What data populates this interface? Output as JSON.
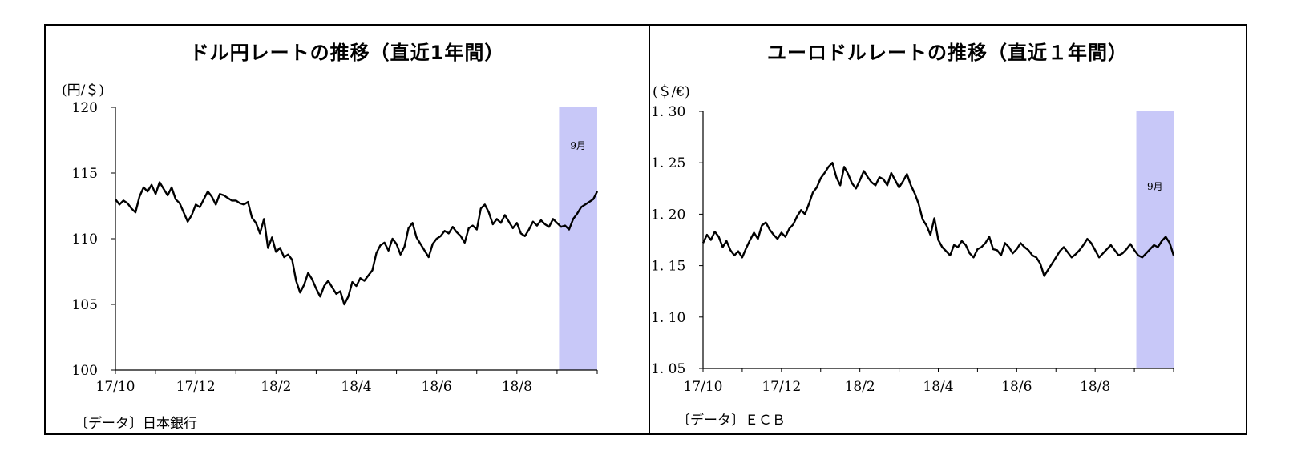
{
  "chart_data": [
    {
      "type": "line",
      "title": "ドル円レートの推移（直近1年間）",
      "unit_label": "(円/＄)",
      "ylim": [
        100,
        120
      ],
      "y_ticks": [
        "100",
        "105",
        "110",
        "115",
        "120"
      ],
      "x_tick_labels": [
        "17/10",
        "17/12",
        "18/2",
        "18/4",
        "18/6",
        "18/8"
      ],
      "x_range_months": [
        0,
        12
      ],
      "highlight": {
        "label": "9月",
        "from": 11.05,
        "to": 12.0,
        "color": "#c8c8f8"
      },
      "series": [
        {
          "name": "ドル円",
          "x": [
            0.0,
            0.1,
            0.2,
            0.3,
            0.4,
            0.5,
            0.6,
            0.7,
            0.8,
            0.9,
            1.0,
            1.1,
            1.2,
            1.3,
            1.4,
            1.5,
            1.6,
            1.7,
            1.8,
            1.9,
            2.0,
            2.1,
            2.2,
            2.3,
            2.4,
            2.5,
            2.6,
            2.7,
            2.8,
            2.9,
            3.0,
            3.1,
            3.2,
            3.3,
            3.4,
            3.5,
            3.6,
            3.7,
            3.8,
            3.9,
            4.0,
            4.1,
            4.2,
            4.3,
            4.4,
            4.5,
            4.6,
            4.7,
            4.8,
            4.9,
            5.0,
            5.1,
            5.2,
            5.3,
            5.4,
            5.5,
            5.6,
            5.7,
            5.8,
            5.9,
            6.0,
            6.1,
            6.2,
            6.3,
            6.4,
            6.5,
            6.6,
            6.7,
            6.8,
            6.9,
            7.0,
            7.1,
            7.2,
            7.3,
            7.4,
            7.5,
            7.6,
            7.7,
            7.8,
            7.9,
            8.0,
            8.1,
            8.2,
            8.3,
            8.4,
            8.5,
            8.6,
            8.7,
            8.8,
            8.9,
            9.0,
            9.1,
            9.2,
            9.3,
            9.4,
            9.5,
            9.6,
            9.7,
            9.8,
            9.9,
            10.0,
            10.1,
            10.2,
            10.3,
            10.4,
            10.5,
            10.6,
            10.7,
            10.8,
            10.9,
            11.0,
            11.1,
            11.2,
            11.3,
            11.4,
            11.5,
            11.6,
            11.7,
            11.8,
            11.9,
            12.0
          ],
          "values": [
            113.0,
            112.6,
            112.9,
            112.7,
            112.3,
            112.0,
            113.2,
            113.9,
            113.6,
            114.1,
            113.4,
            114.3,
            113.8,
            113.3,
            113.9,
            113.0,
            112.7,
            112.0,
            111.3,
            111.8,
            112.6,
            112.4,
            113.0,
            113.6,
            113.2,
            112.6,
            113.4,
            113.3,
            113.1,
            112.9,
            112.9,
            112.7,
            112.6,
            112.8,
            111.6,
            111.2,
            110.4,
            111.5,
            109.3,
            110.1,
            109.0,
            109.3,
            108.6,
            108.8,
            108.4,
            106.8,
            105.9,
            106.5,
            107.4,
            106.9,
            106.2,
            105.6,
            106.4,
            106.8,
            106.3,
            105.8,
            106.0,
            105.0,
            105.6,
            106.7,
            106.4,
            107.0,
            106.8,
            107.2,
            107.6,
            108.9,
            109.5,
            109.7,
            109.1,
            110.0,
            109.6,
            108.8,
            109.4,
            110.8,
            111.2,
            110.1,
            109.6,
            109.1,
            108.6,
            109.6,
            110.0,
            110.2,
            110.6,
            110.4,
            110.9,
            110.5,
            110.2,
            109.7,
            110.8,
            111.0,
            110.7,
            112.3,
            112.6,
            112.0,
            111.1,
            111.5,
            111.2,
            111.8,
            111.3,
            110.8,
            111.2,
            110.4,
            110.2,
            110.7,
            111.3,
            111.0,
            111.4,
            111.1,
            110.9,
            111.5,
            111.2,
            110.9,
            111.0,
            110.7,
            111.5,
            111.9,
            112.4,
            112.6,
            112.8,
            113.0,
            113.6
          ]
        }
      ],
      "source": "〔データ〕日本銀行"
    },
    {
      "type": "line",
      "title": "ユーロドルレートの推移（直近１年間）",
      "unit_label": "(＄/€)",
      "ylim": [
        1.05,
        1.3
      ],
      "y_ticks": [
        "1.05",
        "1.10",
        "1.15",
        "1.20",
        "1.25",
        "1.30"
      ],
      "x_tick_labels": [
        "17/10",
        "17/12",
        "18/2",
        "18/4",
        "18/6",
        "18/8"
      ],
      "x_range_months": [
        0,
        12
      ],
      "highlight": {
        "label": "9月",
        "from": 11.05,
        "to": 12.0,
        "color": "#c8c8f8"
      },
      "series": [
        {
          "name": "ユーロドル",
          "x": [
            0.0,
            0.1,
            0.2,
            0.3,
            0.4,
            0.5,
            0.6,
            0.7,
            0.8,
            0.9,
            1.0,
            1.1,
            1.2,
            1.3,
            1.4,
            1.5,
            1.6,
            1.7,
            1.8,
            1.9,
            2.0,
            2.1,
            2.2,
            2.3,
            2.4,
            2.5,
            2.6,
            2.7,
            2.8,
            2.9,
            3.0,
            3.1,
            3.2,
            3.3,
            3.4,
            3.5,
            3.6,
            3.7,
            3.8,
            3.9,
            4.0,
            4.1,
            4.2,
            4.3,
            4.4,
            4.5,
            4.6,
            4.7,
            4.8,
            4.9,
            5.0,
            5.1,
            5.2,
            5.3,
            5.4,
            5.5,
            5.6,
            5.7,
            5.8,
            5.9,
            6.0,
            6.1,
            6.2,
            6.3,
            6.4,
            6.5,
            6.6,
            6.7,
            6.8,
            6.9,
            7.0,
            7.1,
            7.2,
            7.3,
            7.4,
            7.5,
            7.6,
            7.7,
            7.8,
            7.9,
            8.0,
            8.1,
            8.2,
            8.3,
            8.4,
            8.5,
            8.6,
            8.7,
            8.8,
            8.9,
            9.0,
            9.1,
            9.2,
            9.3,
            9.4,
            9.5,
            9.6,
            9.7,
            9.8,
            9.9,
            10.0,
            10.1,
            10.2,
            10.3,
            10.4,
            10.5,
            10.6,
            10.7,
            10.8,
            10.9,
            11.0,
            11.1,
            11.2,
            11.3,
            11.4,
            11.5,
            11.6,
            11.7,
            11.8,
            11.9,
            12.0
          ],
          "values": [
            1.172,
            1.18,
            1.175,
            1.183,
            1.178,
            1.168,
            1.174,
            1.165,
            1.16,
            1.164,
            1.158,
            1.167,
            1.175,
            1.182,
            1.176,
            1.189,
            1.192,
            1.185,
            1.18,
            1.176,
            1.182,
            1.178,
            1.186,
            1.19,
            1.198,
            1.204,
            1.2,
            1.21,
            1.221,
            1.226,
            1.235,
            1.24,
            1.246,
            1.25,
            1.236,
            1.228,
            1.246,
            1.239,
            1.23,
            1.225,
            1.233,
            1.242,
            1.236,
            1.231,
            1.228,
            1.236,
            1.234,
            1.228,
            1.24,
            1.233,
            1.226,
            1.232,
            1.239,
            1.228,
            1.22,
            1.21,
            1.195,
            1.189,
            1.18,
            1.196,
            1.175,
            1.168,
            1.164,
            1.16,
            1.17,
            1.168,
            1.174,
            1.17,
            1.162,
            1.158,
            1.166,
            1.168,
            1.172,
            1.178,
            1.166,
            1.165,
            1.16,
            1.172,
            1.168,
            1.162,
            1.166,
            1.172,
            1.168,
            1.165,
            1.16,
            1.158,
            1.152,
            1.14,
            1.146,
            1.152,
            1.158,
            1.164,
            1.168,
            1.163,
            1.158,
            1.161,
            1.165,
            1.17,
            1.176,
            1.172,
            1.165,
            1.158,
            1.162,
            1.166,
            1.17,
            1.165,
            1.16,
            1.162,
            1.166,
            1.171,
            1.165,
            1.16,
            1.158,
            1.162,
            1.166,
            1.17,
            1.168,
            1.174,
            1.178,
            1.172,
            1.16
          ]
        }
      ],
      "source": "〔データ〕ＥＣＢ"
    }
  ]
}
